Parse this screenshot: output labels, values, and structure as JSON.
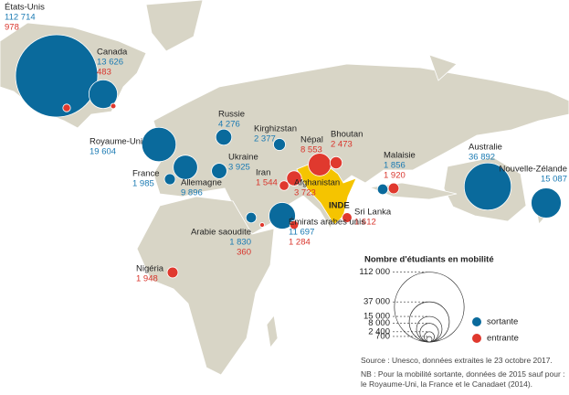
{
  "map": {
    "countries": [
      {
        "name": "États-Unis",
        "sortante": {
          "value": 112714,
          "label": "112 714"
        },
        "entrante": {
          "value": 978,
          "label": "978"
        }
      },
      {
        "name": "Canada",
        "sortante": {
          "value": 13626,
          "label": "13 626"
        },
        "entrante": {
          "value": 483,
          "label": "483"
        }
      },
      {
        "name": "Royaume-Uni",
        "sortante": {
          "value": 19604,
          "label": "19 604"
        }
      },
      {
        "name": "France",
        "sortante": {
          "value": 1985,
          "label": "1 985"
        }
      },
      {
        "name": "Allemagne",
        "sortante": {
          "value": 9896,
          "label": "9 896"
        }
      },
      {
        "name": "Russie",
        "sortante": {
          "value": 4276,
          "label": "4 276"
        }
      },
      {
        "name": "Ukraine",
        "sortante": {
          "value": 3925,
          "label": "3 925"
        }
      },
      {
        "name": "Kirghizstan",
        "sortante": {
          "value": 2377,
          "label": "2 377"
        }
      },
      {
        "name": "Népal",
        "entrante": {
          "value": 8553,
          "label": "8 553"
        }
      },
      {
        "name": "Bhoutan",
        "entrante": {
          "value": 2473,
          "label": "2 473"
        }
      },
      {
        "name": "Iran",
        "entrante": {
          "value": 1544,
          "label": "1 544"
        }
      },
      {
        "name": "Afghanistan",
        "entrante": {
          "value": 3723,
          "label": "3 723"
        }
      },
      {
        "name": "Malaisie",
        "sortante": {
          "value": 1856,
          "label": "1 856"
        },
        "entrante": {
          "value": 1920,
          "label": "1 920"
        }
      },
      {
        "name": "Australie",
        "sortante": {
          "value": 36892,
          "label": "36 892"
        }
      },
      {
        "name": "Nouvelle-Zélande",
        "sortante": {
          "value": 15087,
          "label": "15 087"
        }
      },
      {
        "name": "Sri Lanka",
        "entrante": {
          "value": 1612,
          "label": "1 612"
        }
      },
      {
        "name": "Arabie saoudite",
        "sortante": {
          "value": 1830,
          "label": "1 830"
        },
        "entrante": {
          "value": 360,
          "label": "360"
        }
      },
      {
        "name": "Émirats arabes unis",
        "sortante": {
          "value": 11697,
          "label": "11 697"
        },
        "entrante": {
          "value": 1284,
          "label": "1 284"
        }
      },
      {
        "name": "Nigéria",
        "entrante": {
          "value": 1948,
          "label": "1 948"
        }
      }
    ],
    "highlight": "INDE",
    "legend": {
      "title": "Nombre d'étudiants en mobilité",
      "sizes": [
        {
          "value": 112000,
          "label": "112 000"
        },
        {
          "value": 37000,
          "label": "37 000"
        },
        {
          "value": 15000,
          "label": "15 000"
        },
        {
          "value": 8000,
          "label": "8 000"
        },
        {
          "value": 2400,
          "label": "2 400"
        },
        {
          "value": 700,
          "label": "700"
        }
      ],
      "sortante": "sortante",
      "entrante": "entrante"
    },
    "source": "Source : Unesco, données extraites le 23 octobre 2017.",
    "note": "NB : Pour la mobilité sortante, données de 2015 sauf pour : le Royaume-Uni, la France et le Canadaet (2014)."
  }
}
